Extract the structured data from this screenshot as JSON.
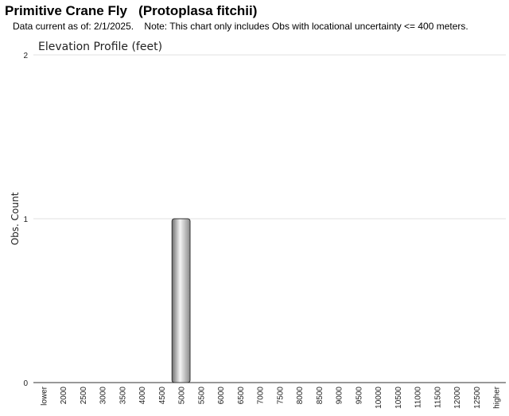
{
  "header": {
    "title": "Primitive Crane Fly   (Protoplasa fitchii)",
    "subtitle": "Data current as of: 2/1/2025.    Note: This chart only includes Obs with locational uncertainty <= 400 meters."
  },
  "chart_data": {
    "type": "bar",
    "title": "Elevation Profile (feet)",
    "xlabel": "",
    "ylabel": "Obs. Count",
    "ylim": [
      0,
      2
    ],
    "yticks": [
      "0",
      "1",
      "2"
    ],
    "grid": true,
    "categories": [
      "lower",
      "2000",
      "2500",
      "3000",
      "3500",
      "4000",
      "4500",
      "5000",
      "5500",
      "6000",
      "6500",
      "7000",
      "7500",
      "8000",
      "8500",
      "9000",
      "9500",
      "10000",
      "10500",
      "11000",
      "11500",
      "12000",
      "12500",
      "higher"
    ],
    "values": [
      0,
      0,
      0,
      0,
      0,
      0,
      0,
      1,
      0,
      0,
      0,
      0,
      0,
      0,
      0,
      0,
      0,
      0,
      0,
      0,
      0,
      0,
      0,
      0
    ],
    "bar_color": "#b8b8b8"
  }
}
